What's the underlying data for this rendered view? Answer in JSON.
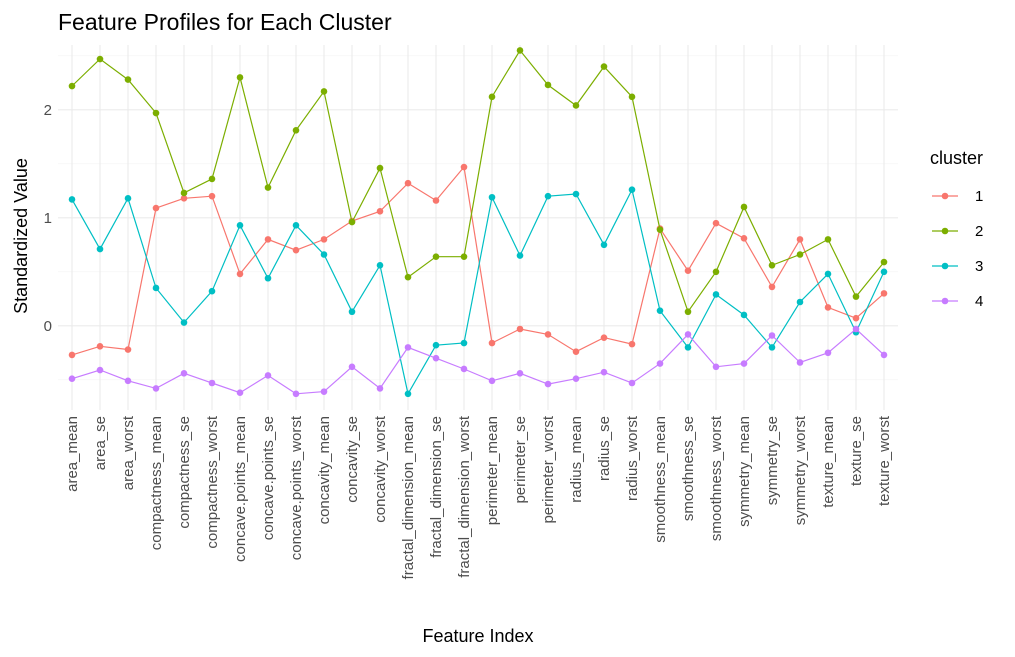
{
  "chart_data": {
    "type": "line",
    "title": "Feature Profiles for Each Cluster",
    "xlabel": "Feature Index",
    "ylabel": "Standardized Value",
    "ylim": [
      -0.78,
      2.6
    ],
    "yticks": [
      0,
      1,
      2
    ],
    "grid": true,
    "legend": {
      "title": "cluster",
      "position": "right"
    },
    "categories": [
      "area_mean",
      "area_se",
      "area_worst",
      "compactness_mean",
      "compactness_se",
      "compactness_worst",
      "concave.points_mean",
      "concave.points_se",
      "concave.points_worst",
      "concavity_mean",
      "concavity_se",
      "concavity_worst",
      "fractal_dimension_mean",
      "fractal_dimension_se",
      "fractal_dimension_worst",
      "perimeter_mean",
      "perimeter_se",
      "perimeter_worst",
      "radius_mean",
      "radius_se",
      "radius_worst",
      "smoothness_mean",
      "smoothness_se",
      "smoothness_worst",
      "symmetry_mean",
      "symmetry_se",
      "symmetry_worst",
      "texture_mean",
      "texture_se",
      "texture_worst"
    ],
    "series": [
      {
        "name": "1",
        "color": "#F8766D",
        "values": [
          -0.27,
          -0.19,
          -0.22,
          1.09,
          1.18,
          1.2,
          0.48,
          0.8,
          0.7,
          0.8,
          0.97,
          1.06,
          1.32,
          1.16,
          1.47,
          -0.16,
          -0.03,
          -0.08,
          -0.24,
          -0.11,
          -0.17,
          0.9,
          0.51,
          0.95,
          0.81,
          0.36,
          0.8,
          0.17,
          0.07,
          0.3
        ]
      },
      {
        "name": "2",
        "color": "#7CAE00",
        "values": [
          2.22,
          2.47,
          2.28,
          1.97,
          1.23,
          1.36,
          2.3,
          1.28,
          1.81,
          2.17,
          0.96,
          1.46,
          0.45,
          0.64,
          0.64,
          2.12,
          2.55,
          2.23,
          2.04,
          2.4,
          2.12,
          0.89,
          0.13,
          0.5,
          1.1,
          0.56,
          0.66,
          0.8,
          0.27,
          0.59
        ]
      },
      {
        "name": "3",
        "color": "#00BFC4",
        "values": [
          1.17,
          0.71,
          1.18,
          0.35,
          0.03,
          0.32,
          0.93,
          0.44,
          0.93,
          0.66,
          0.13,
          0.56,
          -0.63,
          -0.18,
          -0.16,
          1.19,
          0.65,
          1.2,
          1.22,
          0.75,
          1.26,
          0.14,
          -0.2,
          0.29,
          0.1,
          -0.2,
          0.22,
          0.48,
          -0.06,
          0.5
        ]
      },
      {
        "name": "4",
        "color": "#C77CFF",
        "values": [
          -0.49,
          -0.41,
          -0.51,
          -0.58,
          -0.44,
          -0.53,
          -0.62,
          -0.46,
          -0.63,
          -0.61,
          -0.38,
          -0.58,
          -0.2,
          -0.3,
          -0.4,
          -0.51,
          -0.44,
          -0.54,
          -0.49,
          -0.43,
          -0.53,
          -0.35,
          -0.08,
          -0.38,
          -0.35,
          -0.09,
          -0.34,
          -0.25,
          -0.03,
          -0.27
        ]
      }
    ]
  }
}
